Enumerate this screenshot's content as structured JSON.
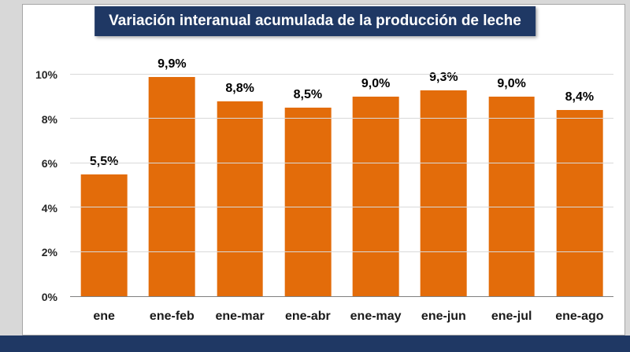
{
  "title": "Variación interanual acumulada de la producción de leche",
  "colors": {
    "bar": "#E36C0A",
    "title_background": "#1F3864",
    "footer_band": "#1F3864",
    "gridline": "#d9d9d9"
  },
  "chart_data": {
    "type": "bar",
    "title": "Variación interanual acumulada de la producción de leche",
    "categories": [
      "ene",
      "ene-feb",
      "ene-mar",
      "ene-abr",
      "ene-may",
      "ene-jun",
      "ene-jul",
      "ene-ago"
    ],
    "values": [
      5.5,
      9.9,
      8.8,
      8.5,
      9.0,
      9.3,
      9.0,
      8.4
    ],
    "value_labels": [
      "5,5%",
      "9,9%",
      "8,8%",
      "8,5%",
      "9,0%",
      "9,3%",
      "9,0%",
      "8,4%"
    ],
    "xlabel": "",
    "ylabel": "",
    "ylim": [
      0,
      10
    ],
    "yticks": [
      0,
      2,
      4,
      6,
      8,
      10
    ],
    "ytick_labels": [
      "0%",
      "2%",
      "4%",
      "6%",
      "8%",
      "10%"
    ],
    "grid": true,
    "legend": false
  }
}
